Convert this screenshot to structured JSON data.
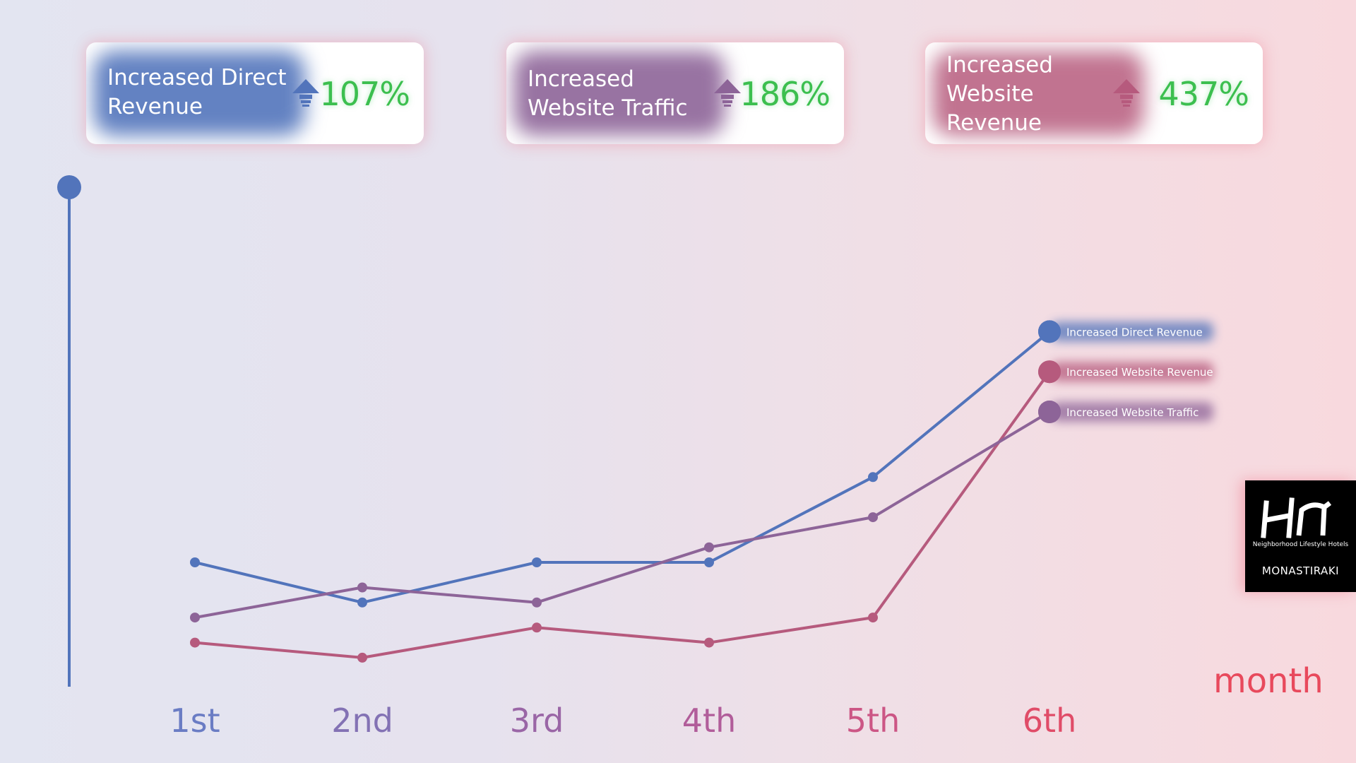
{
  "cards": [
    {
      "label": "Increased Direct Revenue",
      "lines": [
        "Increased Direct",
        "Revenue"
      ],
      "value": "107%"
    },
    {
      "label": "Increased Website Traffic",
      "lines": [
        "Increased",
        "Website Traffic"
      ],
      "value": "186%"
    },
    {
      "label": "Increased Website Revenue",
      "lines": [
        "Increased",
        "Website",
        "Revenue"
      ],
      "value": "437%"
    }
  ],
  "logo": {
    "mark": "HN",
    "tagline": "Neighborhood Lifestyle Hotels",
    "location": "MONASTIRAKI"
  },
  "colors": {
    "direct_revenue": "#5274bb",
    "website_traffic": "#8d6498",
    "website_revenue": "#b65a7d",
    "value_green": "#3cbf4f",
    "axis_label": "#e8495c"
  },
  "chart_data": {
    "type": "line",
    "categories": [
      "1st",
      "2nd",
      "3rd",
      "4th",
      "5th",
      "6th"
    ],
    "xlabel": "month",
    "ylabel": "",
    "ylim": [
      0,
      100
    ],
    "grid": false,
    "series": [
      {
        "name": "Increased Direct Revenue",
        "values": [
          30,
          22,
          30,
          30,
          47,
          76
        ]
      },
      {
        "name": "Increased Website Revenue",
        "values": [
          14,
          11,
          17,
          14,
          19,
          68
        ]
      },
      {
        "name": "Increased Website Traffic",
        "values": [
          19,
          25,
          22,
          33,
          39,
          60
        ]
      }
    ]
  }
}
